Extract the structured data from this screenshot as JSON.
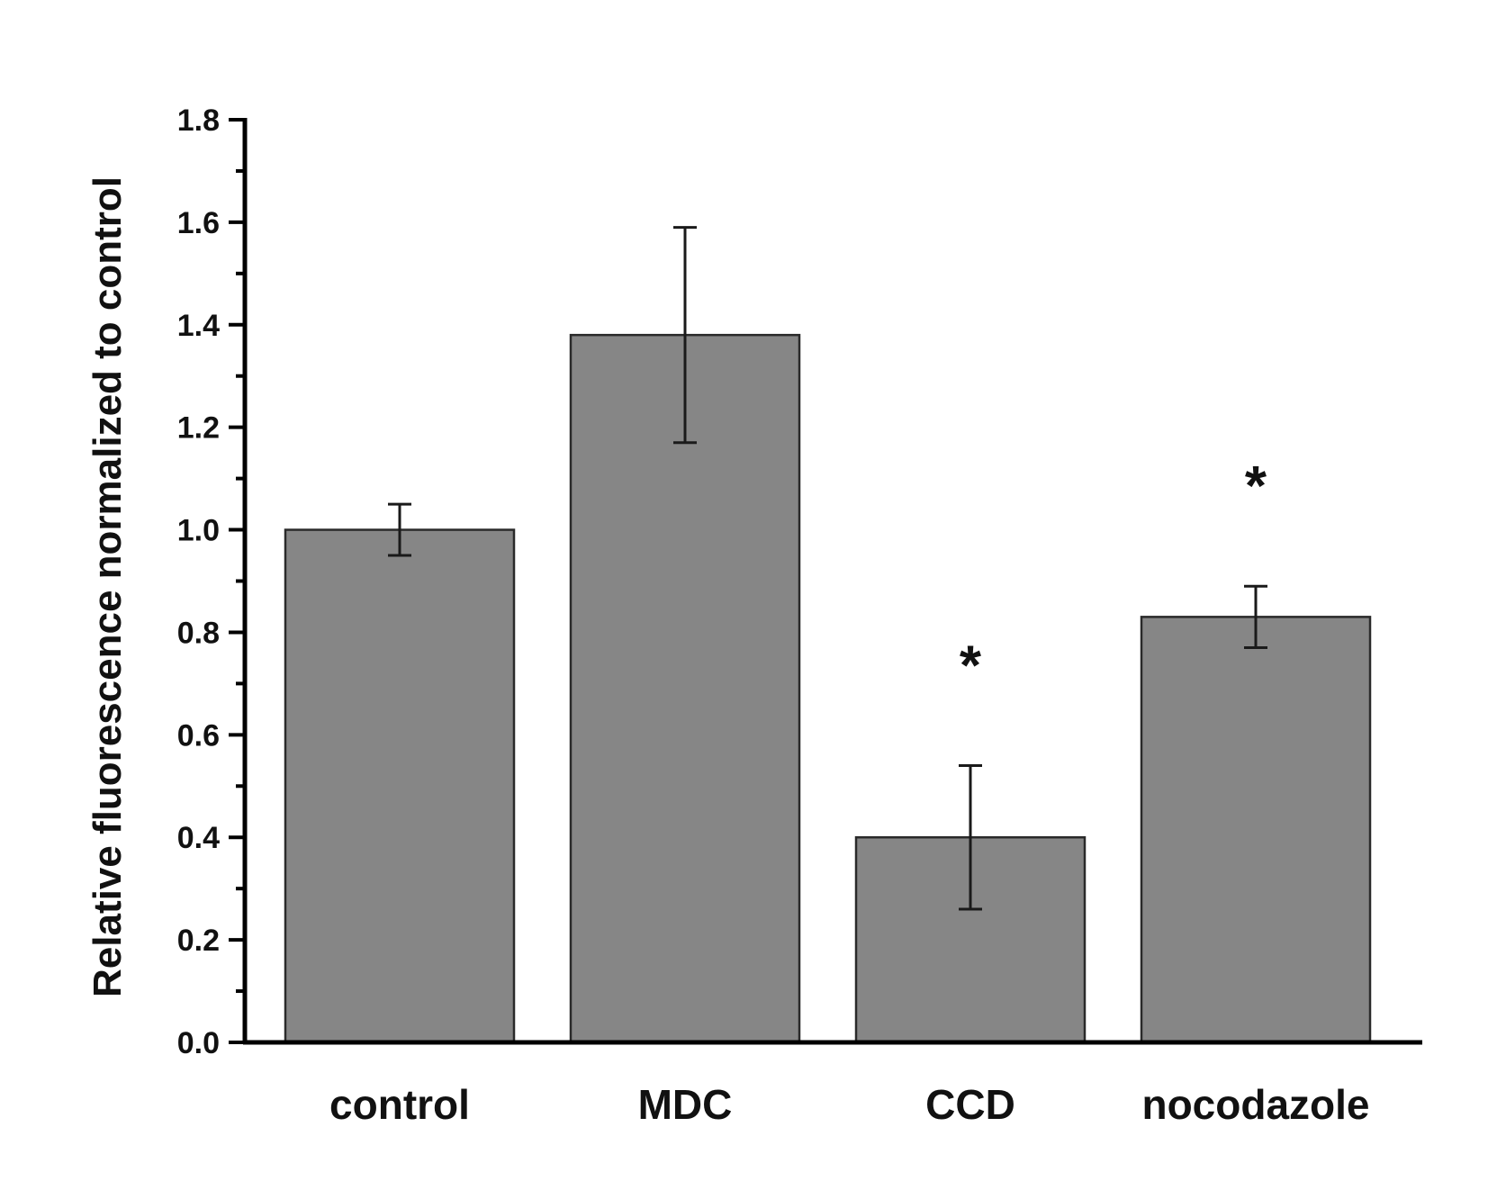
{
  "chart_data": {
    "type": "bar",
    "title": "",
    "xlabel": "",
    "ylabel": "Relative fluorescence normalized to control",
    "ylim": [
      0,
      1.8
    ],
    "yticks": [
      "0.0",
      "0.2",
      "0.4",
      "0.6",
      "0.8",
      "1.0",
      "1.2",
      "1.4",
      "1.6",
      "1.8"
    ],
    "minor_tick_step": 0.1,
    "grid": false,
    "legend": "none",
    "categories": [
      "control",
      "MDC",
      "CCD",
      "nocodazole"
    ],
    "values": [
      1.0,
      1.38,
      0.4,
      0.83
    ],
    "error_bars": [
      0.05,
      0.21,
      0.14,
      0.06
    ],
    "significance": [
      "",
      "",
      "*",
      "*"
    ],
    "colors": {
      "bar_fill": "#868686",
      "bar_stroke": "#2a2a2a",
      "axis": "#000000",
      "error_bar": "#1a1a1a"
    }
  }
}
